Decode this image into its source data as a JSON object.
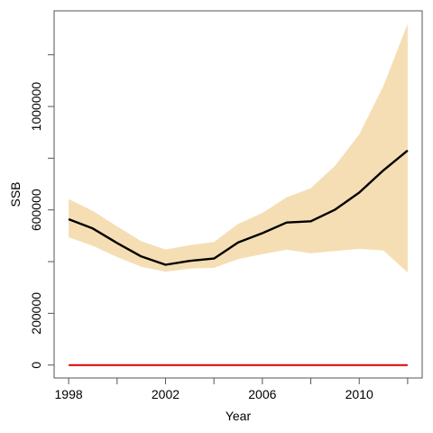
{
  "chart_data": {
    "type": "area",
    "xlabel": "Year",
    "ylabel": "SSB",
    "xlim": [
      1997.4,
      2012.6
    ],
    "ylim": [
      -50000,
      1370000
    ],
    "x_ticks": [
      1998,
      2000,
      2002,
      2004,
      2006,
      2008,
      2010,
      2012
    ],
    "x_tick_labels": [
      "1998",
      "",
      "2002",
      "",
      "2006",
      "",
      "2010",
      ""
    ],
    "y_ticks": [
      0,
      200000,
      400000,
      600000,
      800000,
      1000000,
      1200000
    ],
    "y_tick_labels": [
      "0",
      "200000",
      "600000",
      "1000000"
    ],
    "y_labeled_ticks": [
      0,
      200000,
      600000,
      1000000
    ],
    "x": [
      1998,
      1999,
      2000,
      2001,
      2002,
      2003,
      2004,
      2005,
      2006,
      2007,
      2008,
      2009,
      2010,
      2011,
      2012
    ],
    "series": [
      {
        "role": "estimate",
        "values": [
          564000,
          528000,
          472000,
          420000,
          388000,
          403000,
          412000,
          474000,
          510000,
          551000,
          556000,
          601000,
          667000,
          753000,
          830000
        ],
        "color": "#000000"
      },
      {
        "role": "upper_ci",
        "values": [
          642000,
          596000,
          536000,
          479000,
          447000,
          464000,
          476000,
          546000,
          588000,
          649000,
          684000,
          771000,
          892000,
          1080000,
          1320000
        ]
      },
      {
        "role": "lower_ci",
        "values": [
          494000,
          461000,
          418000,
          380000,
          361000,
          373000,
          376000,
          410000,
          429000,
          446000,
          432000,
          441000,
          450000,
          443000,
          358000
        ]
      },
      {
        "role": "reference_line",
        "values": [
          0,
          0,
          0,
          0,
          0,
          0,
          0,
          0,
          0,
          0,
          0,
          0,
          0,
          0,
          0
        ],
        "color": "#dd0000"
      }
    ],
    "band_color": "#f5deb3",
    "grid": false,
    "legend": "none"
  }
}
